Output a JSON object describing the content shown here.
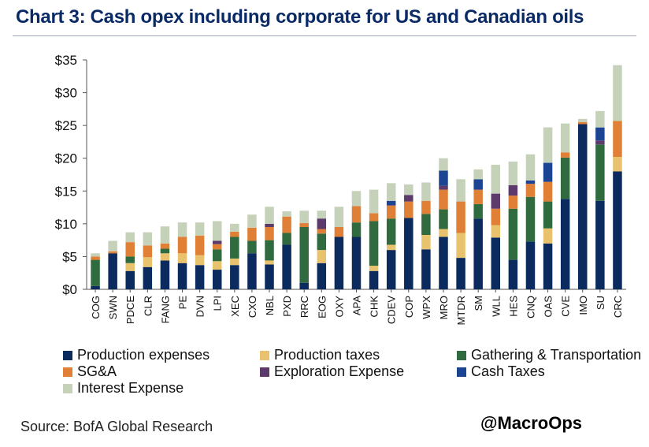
{
  "title": "Chart 3: Cash opex including corporate for US and Canadian oils",
  "source": "Source: BofA Global Research",
  "watermark": "@MacroOps",
  "colors": {
    "Production expenses": "#0b2a5e",
    "Production taxes": "#e8c26c",
    "Gathering & Transportation": "#2f6b3f",
    "SG&A": "#e07f36",
    "Exploration Expense": "#5c3a6b",
    "Cash Taxes": "#1b4592",
    "Interest Expense": "#c6d1b9"
  },
  "chart_data": {
    "type": "bar",
    "stacked": true,
    "title": "Chart 3: Cash opex including corporate for US and Canadian oils",
    "xlabel": "",
    "ylabel": "",
    "ylim": [
      0,
      35
    ],
    "yticks": [
      "$0",
      "$5",
      "$10",
      "$15",
      "$20",
      "$25",
      "$30",
      "$35"
    ],
    "grid": false,
    "legend_position": "bottom",
    "categories": [
      "COG",
      "SWN",
      "PDCE",
      "CLR",
      "FANG",
      "PE",
      "DVN",
      "LPI",
      "XEC",
      "CXO",
      "NBL",
      "PXD",
      "RRC",
      "EOG",
      "OXY",
      "APA",
      "CHK",
      "CDEV",
      "COP",
      "WPX",
      "MRO",
      "MTDR",
      "SM",
      "WLL",
      "HES",
      "CNQ",
      "OAS",
      "CVE",
      "IMO",
      "SU",
      "CRC"
    ],
    "series": [
      {
        "name": "Production expenses",
        "values": [
          0.5,
          5.5,
          2.8,
          3.4,
          4.4,
          4.0,
          3.7,
          3.0,
          3.7,
          5.5,
          3.8,
          6.8,
          1.0,
          4.0,
          8.0,
          8.0,
          2.8,
          6.0,
          10.9,
          6.1,
          8.0,
          4.8,
          10.8,
          7.9,
          4.5,
          7.3,
          7.0,
          13.8,
          25.2,
          13.5,
          18.0
        ]
      },
      {
        "name": "Production taxes",
        "values": [
          0.0,
          0.0,
          1.2,
          1.5,
          1.1,
          1.5,
          1.5,
          1.3,
          1.0,
          0.0,
          0.6,
          0.0,
          0.0,
          2.0,
          0.0,
          0.0,
          0.8,
          0.8,
          0.0,
          2.2,
          1.2,
          3.8,
          0.0,
          1.9,
          0.0,
          0.0,
          2.3,
          0.0,
          0.0,
          0.0,
          2.2
        ]
      },
      {
        "name": "Gathering & Transportation",
        "values": [
          4.0,
          0.0,
          1.0,
          0.0,
          0.7,
          0.0,
          0.0,
          1.8,
          3.3,
          1.9,
          3.1,
          1.8,
          8.5,
          2.5,
          0.0,
          2.2,
          6.8,
          4.0,
          0.0,
          3.2,
          3.0,
          0.0,
          2.2,
          0.0,
          7.8,
          6.8,
          4.1,
          6.3,
          0.0,
          8.6,
          0.0
        ]
      },
      {
        "name": "SG&A",
        "values": [
          0.5,
          0.3,
          2.2,
          1.8,
          0.8,
          2.5,
          3.0,
          0.8,
          0.8,
          2.0,
          2.0,
          2.5,
          0.6,
          0.7,
          1.5,
          2.5,
          1.2,
          2.0,
          2.5,
          2.0,
          3.0,
          4.8,
          2.2,
          2.5,
          2.0,
          2.0,
          3.0,
          0.8,
          0.3,
          0.0,
          5.5
        ]
      },
      {
        "name": "Exploration Expense",
        "values": [
          0.0,
          0.0,
          0.0,
          0.0,
          0.0,
          0.0,
          0.0,
          0.5,
          0.0,
          0.0,
          0.5,
          0.0,
          0.0,
          1.6,
          0.0,
          0.0,
          0.0,
          0.0,
          1.0,
          0.0,
          0.6,
          0.0,
          0.0,
          2.3,
          1.6,
          0.0,
          0.0,
          0.0,
          0.0,
          0.6,
          0.0
        ]
      },
      {
        "name": "Cash Taxes",
        "values": [
          0.0,
          0.0,
          0.0,
          0.0,
          0.0,
          0.0,
          0.0,
          0.0,
          0.0,
          0.0,
          0.0,
          0.0,
          0.0,
          0.0,
          0.0,
          0.0,
          0.0,
          0.7,
          0.0,
          0.0,
          2.3,
          0.0,
          1.6,
          0.0,
          0.0,
          0.5,
          2.9,
          0.0,
          0.0,
          2.0,
          0.0
        ]
      },
      {
        "name": "Interest Expense",
        "values": [
          0.5,
          1.6,
          1.5,
          2.0,
          2.6,
          2.2,
          2.0,
          3.0,
          1.2,
          2.0,
          2.6,
          0.8,
          1.9,
          1.2,
          3.1,
          2.3,
          3.6,
          2.7,
          1.6,
          2.8,
          1.9,
          3.4,
          1.5,
          4.4,
          3.6,
          4.0,
          5.4,
          4.4,
          0.5,
          2.5,
          8.5
        ]
      }
    ]
  },
  "legend_rows": [
    [
      "Production expenses",
      "Production taxes",
      "Gathering & Transportation"
    ],
    [
      "SG&A",
      "Exploration Expense",
      "Cash Taxes"
    ],
    [
      "Interest Expense"
    ]
  ]
}
